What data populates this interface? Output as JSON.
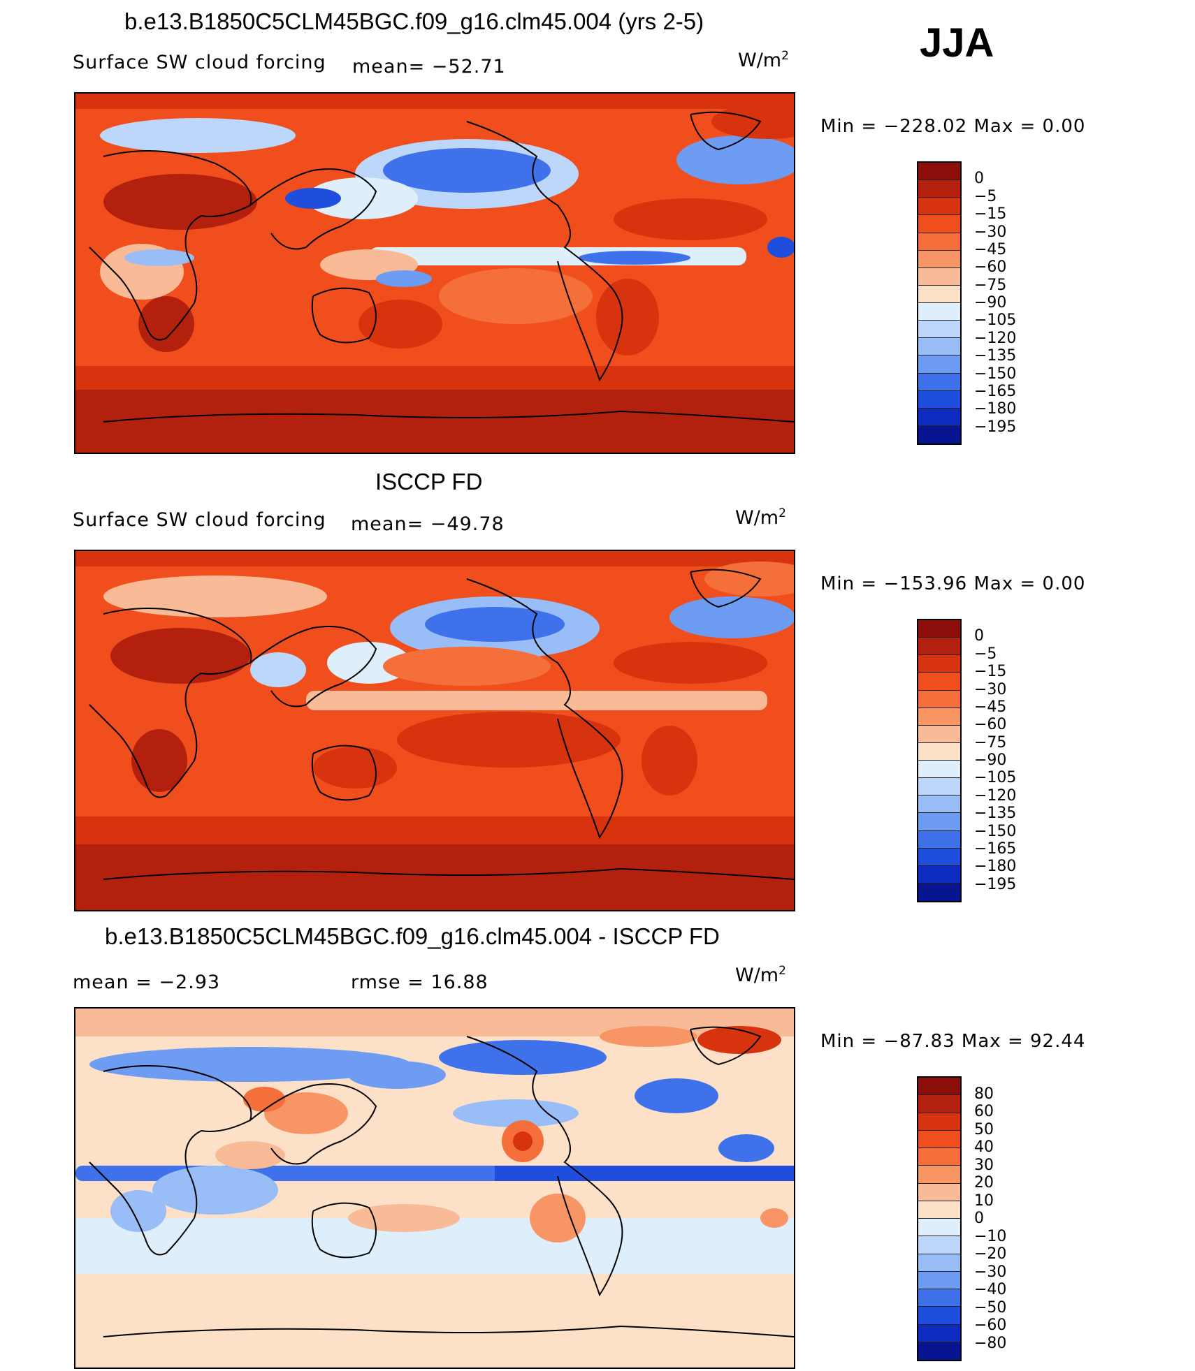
{
  "season": "JJA",
  "units_base": "W/m",
  "units_exp": "2",
  "panels": [
    {
      "title": "b.e13.B1850C5CLM45BGC.f09_g16.clm45.004 (yrs 2-5)",
      "left_label": "Surface SW cloud forcing",
      "mean_text": "mean= −52.71",
      "min_max": "Min  =  −228.02  Max  =     0.00",
      "levels": [
        "0",
        "−5",
        "−15",
        "−30",
        "−45",
        "−60",
        "−75",
        "−90",
        "−105",
        "−120",
        "−135",
        "−150",
        "−165",
        "−180",
        "−195"
      ],
      "colors": [
        "#8b0e0a",
        "#b3200d",
        "#d8330f",
        "#f04e1d",
        "#f56f3a",
        "#f79565",
        "#f9bb97",
        "#fde0c8",
        "#deeefb",
        "#bcd7fa",
        "#98bdf7",
        "#6d9cf2",
        "#3f72ea",
        "#1f4edd",
        "#0e2cc0",
        "#071690"
      ]
    },
    {
      "title": "ISCCP FD",
      "left_label": "Surface SW cloud forcing",
      "mean_text": "mean= −49.78",
      "min_max": "Min  =  −153.96  Max  =     0.00",
      "levels": [
        "0",
        "−5",
        "−15",
        "−30",
        "−45",
        "−60",
        "−75",
        "−90",
        "−105",
        "−120",
        "−135",
        "−150",
        "−165",
        "−180",
        "−195"
      ],
      "colors": [
        "#8b0e0a",
        "#b3200d",
        "#d8330f",
        "#f04e1d",
        "#f56f3a",
        "#f79565",
        "#f9bb97",
        "#fde0c8",
        "#deeefb",
        "#bcd7fa",
        "#98bdf7",
        "#6d9cf2",
        "#3f72ea",
        "#1f4edd",
        "#0e2cc0",
        "#071690"
      ]
    },
    {
      "title": "b.e13.B1850C5CLM45BGC.f09_g16.clm45.004 - ISCCP FD",
      "mean_text": "mean  =    −2.93",
      "rmse_text": "rmse  =    16.88",
      "min_max": "Min  =  −87.83  Max  =   92.44",
      "levels": [
        "80",
        "60",
        "50",
        "40",
        "30",
        "20",
        "10",
        "0",
        "−10",
        "−20",
        "−30",
        "−40",
        "−50",
        "−60",
        "−80"
      ],
      "colors": [
        "#8b0e0a",
        "#b3200d",
        "#d8330f",
        "#f04e1d",
        "#f56f3a",
        "#f79565",
        "#f9bb97",
        "#fde0c8",
        "#deeefb",
        "#bcd7fa",
        "#98bdf7",
        "#6d9cf2",
        "#3f72ea",
        "#1f4edd",
        "#0e2cc0",
        "#071690"
      ]
    }
  ]
}
